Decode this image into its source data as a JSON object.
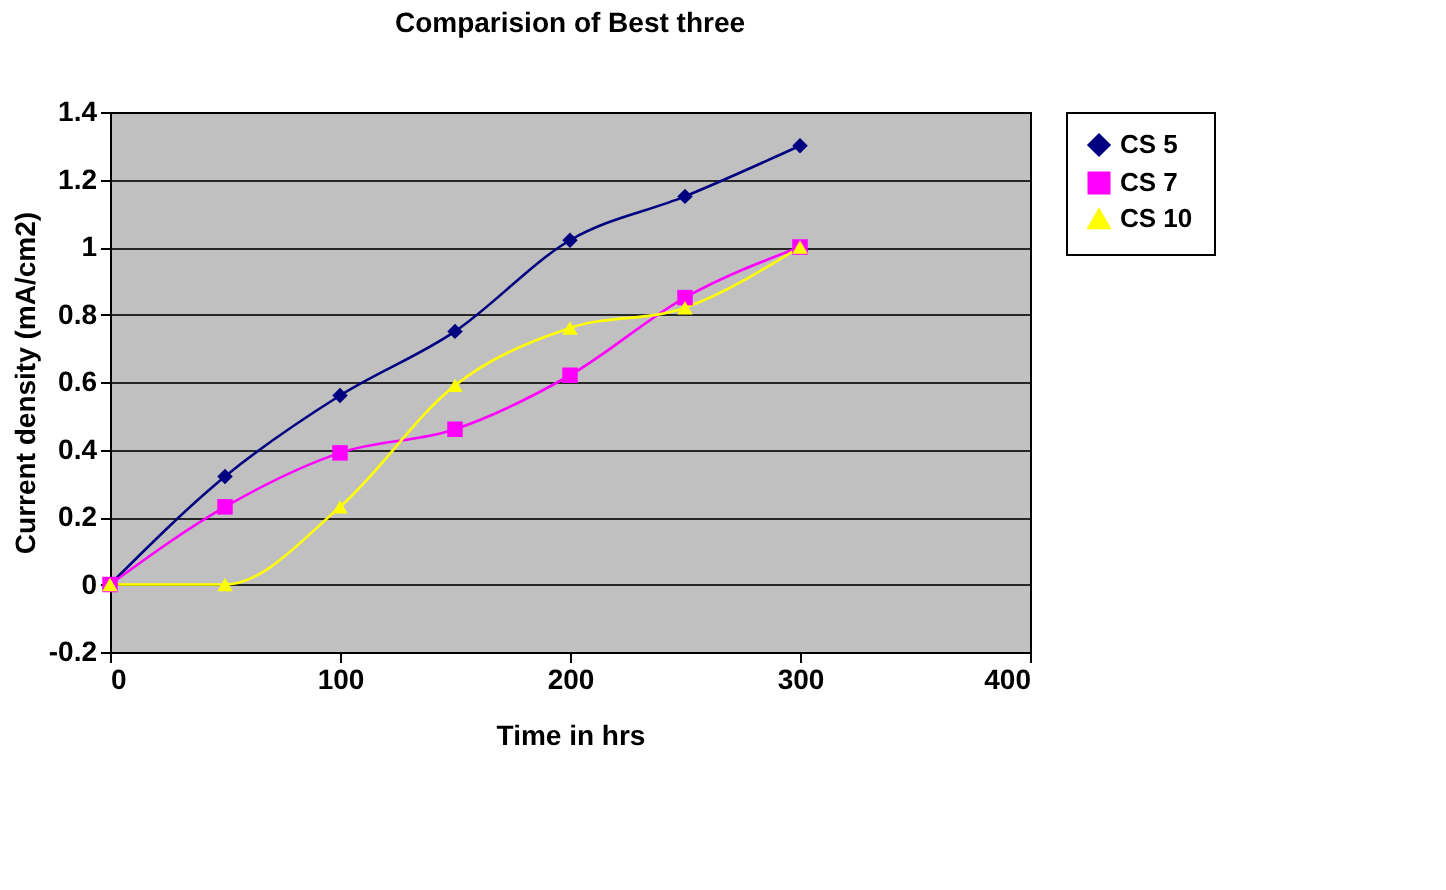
{
  "chart_data": {
    "type": "line",
    "title": "Comparision of Best three",
    "xlabel": "Time in hrs",
    "ylabel": "Current density (mA/cm2)",
    "x": [
      0,
      50,
      100,
      150,
      200,
      250,
      300
    ],
    "series": [
      {
        "name": "CS 5",
        "color": "#000080",
        "marker": "diamond",
        "values": [
          0,
          0.32,
          0.56,
          0.75,
          1.02,
          1.15,
          1.3
        ]
      },
      {
        "name": "CS 7",
        "color": "#ff00ff",
        "marker": "square",
        "values": [
          0,
          0.23,
          0.39,
          0.46,
          0.62,
          0.85,
          1.0
        ]
      },
      {
        "name": "CS 10",
        "color": "#ffff00",
        "marker": "triangle",
        "values": [
          0,
          0,
          0.23,
          0.59,
          0.76,
          0.82,
          1.0
        ]
      }
    ],
    "xlim": [
      0,
      400
    ],
    "xticks": [
      0,
      100,
      200,
      300,
      400
    ],
    "ylim": [
      -0.2,
      1.4
    ],
    "yticks": [
      -0.2,
      0,
      0.2,
      0.4,
      0.6,
      0.8,
      1,
      1.2,
      1.4
    ],
    "grid": "y",
    "legend": "right"
  }
}
